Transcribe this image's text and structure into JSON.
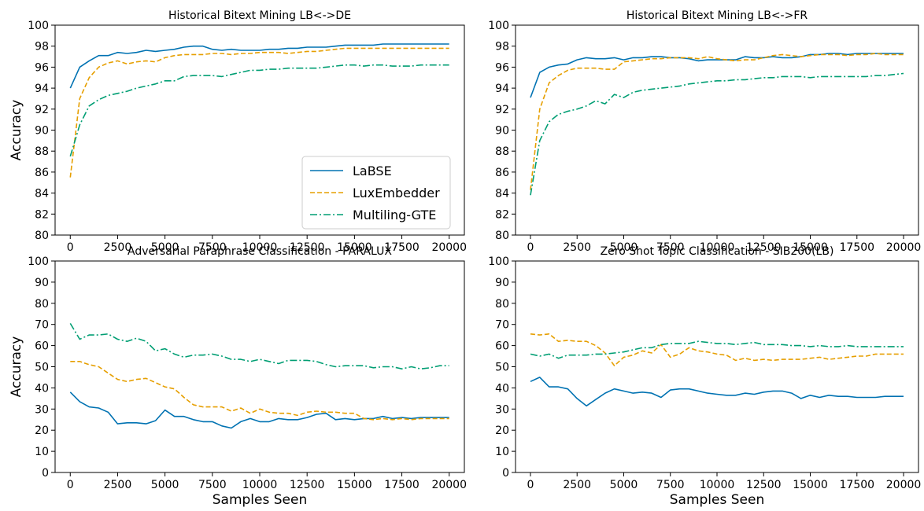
{
  "series_styles": [
    {
      "name": "LaBSE",
      "color": "#0072b2",
      "dash": "solid"
    },
    {
      "name": "LuxEmbedder",
      "color": "#e69f00",
      "dash": "dashed"
    },
    {
      "name": "Multiling-GTE",
      "color": "#009e73",
      "dash": "dashdot"
    }
  ],
  "chart_data": [
    {
      "type": "line",
      "title": "Historical Bitext Mining LB<->DE",
      "xlabel": "",
      "ylabel": "Accuracy",
      "xlim": [
        -800,
        20800
      ],
      "ylim": [
        80,
        100
      ],
      "xticks": [
        0,
        2500,
        5000,
        7500,
        10000,
        12500,
        15000,
        17500,
        20000
      ],
      "yticks": [
        80,
        82,
        84,
        86,
        88,
        90,
        92,
        94,
        96,
        98,
        100
      ],
      "legend": "lower-right",
      "x": [
        0,
        500,
        1000,
        1500,
        2000,
        2500,
        3000,
        3500,
        4000,
        4500,
        5000,
        5500,
        6000,
        6500,
        7000,
        7500,
        8000,
        8500,
        9000,
        9500,
        10000,
        10500,
        11000,
        11500,
        12000,
        12500,
        13000,
        13500,
        14000,
        14500,
        15000,
        15500,
        16000,
        16500,
        17000,
        17500,
        18000,
        18500,
        19000,
        19500,
        20000
      ],
      "series": [
        {
          "name": "LaBSE",
          "values": [
            94.0,
            96.0,
            96.6,
            97.1,
            97.1,
            97.4,
            97.3,
            97.4,
            97.6,
            97.5,
            97.6,
            97.7,
            97.9,
            98.0,
            98.0,
            97.7,
            97.6,
            97.7,
            97.6,
            97.6,
            97.6,
            97.7,
            97.7,
            97.8,
            97.8,
            97.9,
            97.9,
            97.9,
            98.0,
            98.1,
            98.1,
            98.1,
            98.1,
            98.2,
            98.2,
            98.2,
            98.2,
            98.2,
            98.2,
            98.2,
            98.2
          ]
        },
        {
          "name": "LuxEmbedder",
          "values": [
            85.5,
            93.0,
            95.0,
            96.0,
            96.4,
            96.6,
            96.3,
            96.5,
            96.6,
            96.5,
            96.9,
            97.1,
            97.2,
            97.2,
            97.2,
            97.3,
            97.3,
            97.2,
            97.3,
            97.3,
            97.4,
            97.4,
            97.4,
            97.3,
            97.4,
            97.5,
            97.5,
            97.6,
            97.7,
            97.8,
            97.8,
            97.8,
            97.8,
            97.8,
            97.8,
            97.8,
            97.8,
            97.8,
            97.8,
            97.8,
            97.8
          ]
        },
        {
          "name": "Multiling-GTE",
          "values": [
            87.5,
            90.5,
            92.3,
            92.9,
            93.3,
            93.5,
            93.7,
            94.0,
            94.2,
            94.4,
            94.7,
            94.7,
            95.1,
            95.2,
            95.2,
            95.2,
            95.1,
            95.3,
            95.5,
            95.7,
            95.7,
            95.8,
            95.8,
            95.9,
            95.9,
            95.9,
            95.9,
            96.0,
            96.1,
            96.2,
            96.2,
            96.1,
            96.2,
            96.2,
            96.1,
            96.1,
            96.1,
            96.2,
            96.2,
            96.2,
            96.2
          ]
        }
      ]
    },
    {
      "type": "line",
      "title": "Historical Bitext Mining LB<->FR",
      "xlabel": "",
      "ylabel": "",
      "xlim": [
        -800,
        20800
      ],
      "ylim": [
        80,
        100
      ],
      "xticks": [
        0,
        2500,
        5000,
        7500,
        10000,
        12500,
        15000,
        17500,
        20000
      ],
      "yticks": [
        80,
        82,
        84,
        86,
        88,
        90,
        92,
        94,
        96,
        98,
        100
      ],
      "x": [
        0,
        500,
        1000,
        1500,
        2000,
        2500,
        3000,
        3500,
        4000,
        4500,
        5000,
        5500,
        6000,
        6500,
        7000,
        7500,
        8000,
        8500,
        9000,
        9500,
        10000,
        10500,
        11000,
        11500,
        12000,
        12500,
        13000,
        13500,
        14000,
        14500,
        15000,
        15500,
        16000,
        16500,
        17000,
        17500,
        18000,
        18500,
        19000,
        19500,
        20000
      ],
      "series": [
        {
          "name": "LaBSE",
          "values": [
            93.1,
            95.5,
            96.0,
            96.2,
            96.3,
            96.7,
            96.9,
            96.8,
            96.8,
            96.9,
            96.7,
            96.9,
            96.9,
            97.0,
            97.0,
            96.9,
            96.9,
            96.8,
            96.6,
            96.7,
            96.7,
            96.7,
            96.7,
            97.0,
            96.9,
            96.9,
            97.0,
            96.9,
            96.9,
            97.0,
            97.2,
            97.2,
            97.3,
            97.3,
            97.2,
            97.3,
            97.3,
            97.3,
            97.3,
            97.3,
            97.3
          ]
        },
        {
          "name": "LuxEmbedder",
          "values": [
            84.3,
            92.0,
            94.5,
            95.2,
            95.7,
            95.9,
            95.9,
            95.9,
            95.8,
            95.8,
            96.5,
            96.6,
            96.7,
            96.8,
            96.8,
            96.9,
            96.9,
            96.9,
            96.8,
            97.0,
            96.8,
            96.7,
            96.6,
            96.7,
            96.7,
            96.9,
            97.1,
            97.2,
            97.1,
            97.0,
            97.1,
            97.2,
            97.2,
            97.2,
            97.1,
            97.2,
            97.2,
            97.3,
            97.2,
            97.2,
            97.2
          ]
        },
        {
          "name": "Multiling-GTE",
          "values": [
            83.8,
            89.0,
            90.8,
            91.5,
            91.8,
            92.0,
            92.3,
            92.8,
            92.5,
            93.4,
            93.1,
            93.6,
            93.8,
            93.9,
            94.0,
            94.1,
            94.2,
            94.4,
            94.5,
            94.6,
            94.7,
            94.7,
            94.8,
            94.8,
            94.9,
            95.0,
            95.0,
            95.1,
            95.1,
            95.1,
            95.0,
            95.1,
            95.1,
            95.1,
            95.1,
            95.1,
            95.1,
            95.2,
            95.2,
            95.3,
            95.4
          ]
        }
      ]
    },
    {
      "type": "line",
      "title": "Adversarial Paraphrase Classification - PARALUX",
      "xlabel": "Samples Seen",
      "ylabel": "Accuracy",
      "xlim": [
        -800,
        20800
      ],
      "ylim": [
        0,
        100
      ],
      "xticks": [
        0,
        2500,
        5000,
        7500,
        10000,
        12500,
        15000,
        17500,
        20000
      ],
      "yticks": [
        0,
        10,
        20,
        30,
        40,
        50,
        60,
        70,
        80,
        90,
        100
      ],
      "x": [
        0,
        500,
        1000,
        1500,
        2000,
        2500,
        3000,
        3500,
        4000,
        4500,
        5000,
        5500,
        6000,
        6500,
        7000,
        7500,
        8000,
        8500,
        9000,
        9500,
        10000,
        10500,
        11000,
        11500,
        12000,
        12500,
        13000,
        13500,
        14000,
        14500,
        15000,
        15500,
        16000,
        16500,
        17000,
        17500,
        18000,
        18500,
        19000,
        19500,
        20000
      ],
      "series": [
        {
          "name": "LaBSE",
          "values": [
            38.0,
            33.5,
            31.0,
            30.5,
            28.5,
            23.0,
            23.5,
            23.5,
            23.0,
            24.5,
            29.5,
            26.5,
            26.5,
            25.0,
            24.0,
            24.0,
            22.0,
            21.0,
            24.0,
            25.5,
            24.0,
            24.0,
            25.5,
            25.0,
            25.0,
            26.0,
            27.5,
            28.0,
            25.0,
            25.5,
            25.0,
            25.5,
            25.5,
            26.5,
            25.5,
            26.0,
            25.5,
            26.0,
            26.0,
            26.0,
            26.0
          ]
        },
        {
          "name": "LuxEmbedder",
          "values": [
            52.5,
            52.5,
            51.0,
            50.0,
            47.0,
            44.0,
            43.0,
            44.0,
            44.5,
            42.5,
            40.5,
            39.5,
            35.5,
            32.0,
            31.0,
            31.0,
            31.0,
            29.0,
            30.5,
            28.0,
            30.0,
            28.5,
            28.0,
            28.0,
            27.0,
            28.5,
            29.0,
            28.5,
            28.5,
            28.0,
            28.0,
            25.5,
            25.0,
            25.5,
            25.0,
            25.5,
            25.0,
            25.5,
            25.5,
            25.5,
            25.5
          ]
        },
        {
          "name": "Multiling-GTE",
          "values": [
            70.5,
            63.0,
            65.0,
            65.0,
            65.5,
            63.0,
            62.0,
            63.5,
            62.0,
            57.5,
            58.5,
            56.0,
            54.5,
            55.5,
            55.5,
            56.0,
            55.0,
            53.5,
            53.5,
            52.5,
            53.5,
            52.5,
            51.5,
            53.0,
            53.0,
            53.0,
            52.5,
            51.0,
            50.0,
            50.5,
            50.5,
            50.5,
            49.5,
            50.0,
            50.0,
            49.0,
            50.0,
            49.0,
            49.5,
            50.5,
            50.5
          ]
        }
      ]
    },
    {
      "type": "line",
      "title": "Zero Shot Topic Classification - SIB200(LB)",
      "xlabel": "Samples Seen",
      "ylabel": "",
      "xlim": [
        -800,
        20800
      ],
      "ylim": [
        0,
        100
      ],
      "xticks": [
        0,
        2500,
        5000,
        7500,
        10000,
        12500,
        15000,
        17500,
        20000
      ],
      "yticks": [
        0,
        10,
        20,
        30,
        40,
        50,
        60,
        70,
        80,
        90,
        100
      ],
      "x": [
        0,
        500,
        1000,
        1500,
        2000,
        2500,
        3000,
        3500,
        4000,
        4500,
        5000,
        5500,
        6000,
        6500,
        7000,
        7500,
        8000,
        8500,
        9000,
        9500,
        10000,
        10500,
        11000,
        11500,
        12000,
        12500,
        13000,
        13500,
        14000,
        14500,
        15000,
        15500,
        16000,
        16500,
        17000,
        17500,
        18000,
        18500,
        19000,
        19500,
        20000
      ],
      "series": [
        {
          "name": "LaBSE",
          "values": [
            43.0,
            45.0,
            40.5,
            40.5,
            39.5,
            35.0,
            31.5,
            34.5,
            37.5,
            39.5,
            38.5,
            37.5,
            38.0,
            37.5,
            35.5,
            39.0,
            39.5,
            39.5,
            38.5,
            37.5,
            37.0,
            36.5,
            36.5,
            37.5,
            37.0,
            38.0,
            38.5,
            38.5,
            37.5,
            35.0,
            36.5,
            35.5,
            36.5,
            36.0,
            36.0,
            35.5,
            35.5,
            35.5,
            36.0,
            36.0,
            36.0
          ]
        },
        {
          "name": "LuxEmbedder",
          "values": [
            65.5,
            65.0,
            65.5,
            62.0,
            62.5,
            62.0,
            62.0,
            60.0,
            56.5,
            50.5,
            54.5,
            55.5,
            57.5,
            56.5,
            60.5,
            54.5,
            56.0,
            59.0,
            57.5,
            57.0,
            56.0,
            55.5,
            53.0,
            54.0,
            53.0,
            53.5,
            53.0,
            53.5,
            53.5,
            53.5,
            54.0,
            54.5,
            53.5,
            54.0,
            54.5,
            55.0,
            55.0,
            56.0,
            56.0,
            56.0,
            56.0
          ]
        },
        {
          "name": "Multiling-GTE",
          "values": [
            56.0,
            55.0,
            56.0,
            54.0,
            55.5,
            55.5,
            55.5,
            56.0,
            56.0,
            56.5,
            57.0,
            58.0,
            59.0,
            59.0,
            60.5,
            61.0,
            61.0,
            61.0,
            62.0,
            61.5,
            61.0,
            61.0,
            60.5,
            61.0,
            61.5,
            60.5,
            60.5,
            60.5,
            60.0,
            60.0,
            59.5,
            60.0,
            59.5,
            59.5,
            60.0,
            59.5,
            59.5,
            59.5,
            59.5,
            59.5,
            59.5
          ]
        }
      ]
    }
  ]
}
